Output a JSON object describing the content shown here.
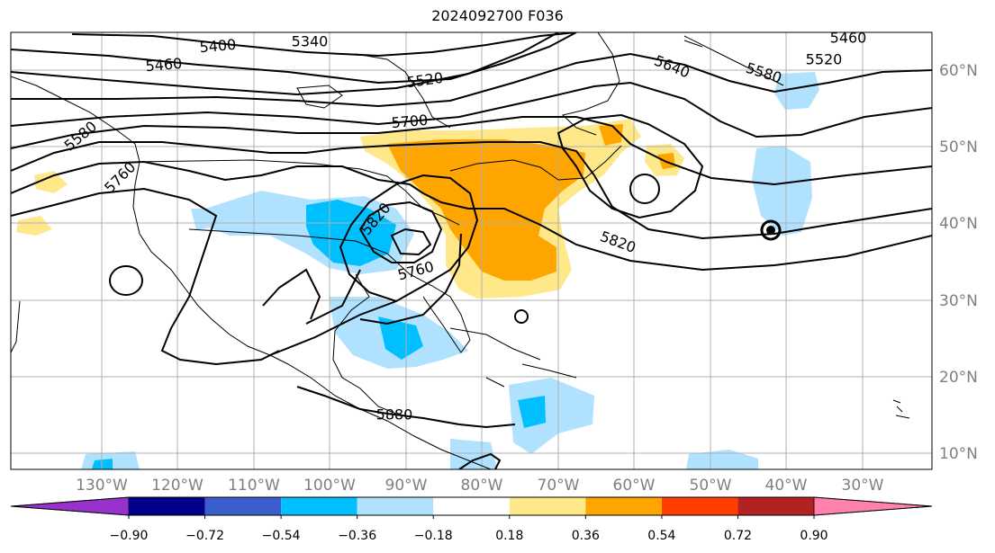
{
  "title": "2024092700 F036",
  "map": {
    "lon_labels": [
      "130°W",
      "120°W",
      "110°W",
      "100°W",
      "90°W",
      "80°W",
      "70°W",
      "60°W",
      "50°W",
      "40°W",
      "30°W"
    ],
    "lat_labels": [
      "60°N",
      "50°N",
      "40°N",
      "30°N",
      "20°N",
      "10°N"
    ],
    "contour_labels": [
      "5400",
      "5340",
      "5460",
      "5460",
      "5520",
      "5520",
      "5640",
      "5580",
      "5580",
      "5700",
      "5760",
      "5820",
      "5760",
      "5820",
      "5880"
    ],
    "colors": {
      "coast": "#000000",
      "grid": "#b0b0b0",
      "contour": "#000000"
    }
  },
  "colorbar": {
    "ticks": [
      "−0.90",
      "−0.72",
      "−0.54",
      "−0.36",
      "−0.18",
      "0.18",
      "0.36",
      "0.54",
      "0.72",
      "0.90"
    ],
    "colors": [
      "#9932cc",
      "#00008b",
      "#3a5fcd",
      "#00bfff",
      "#b0e2ff",
      "#ffffff",
      "#ffe88a",
      "#ffa500",
      "#ff3e00",
      "#b22222",
      "#ff82ab"
    ]
  }
}
